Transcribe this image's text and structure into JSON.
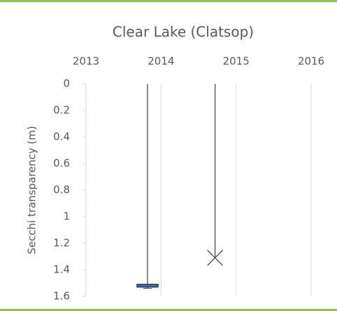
{
  "chart_data": {
    "type": "box",
    "title": "Clear Lake (Clatsop)",
    "y_label": "Secchi transparency (m)",
    "xlim": [
      2013,
      2016
    ],
    "xticks": [
      2013,
      2014,
      2015,
      2016
    ],
    "ylim": [
      0,
      1.6
    ],
    "yticks": [
      0,
      0.2,
      0.4,
      0.6,
      0.8,
      1,
      1.2,
      1.4,
      1.6
    ],
    "y_inverted": true,
    "x_axis_top": true,
    "grid": true,
    "color": "#4a6fa5",
    "boxes": [
      {
        "x": 2013.82,
        "min": 0,
        "q1": 1.51,
        "q3": 1.53,
        "max": 1.54
      },
      {
        "x": 2014.72,
        "min": 0,
        "max": 1.31,
        "mean": 1.31
      }
    ]
  }
}
